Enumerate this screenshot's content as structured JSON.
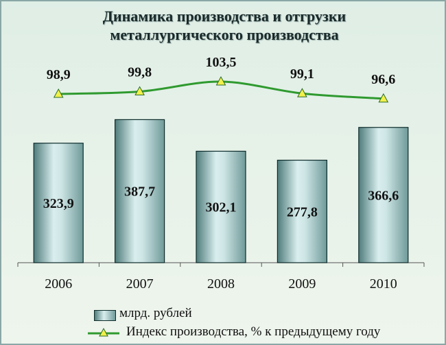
{
  "chart_data": {
    "type": "bar",
    "title": [
      "Динамика производства и отгрузки",
      "металлургического производства"
    ],
    "categories": [
      "2006",
      "2007",
      "2008",
      "2009",
      "2010"
    ],
    "series": [
      {
        "name": "млрд. рублей",
        "type": "bar",
        "values": [
          323.9,
          387.7,
          302.1,
          277.8,
          366.6
        ],
        "labels": [
          "323,9",
          "387,7",
          "302,1",
          "277,8",
          "366,6"
        ]
      },
      {
        "name": "Индекс производства, % к предыдущему году",
        "type": "line",
        "values": [
          98.9,
          99.8,
          103.5,
          99.1,
          96.6
        ],
        "labels": [
          "98,9",
          "99,8",
          "103,5",
          "99,1",
          "96,6"
        ]
      }
    ],
    "ylim": [
      0,
      450
    ],
    "grid": false,
    "legend_position": "bottom",
    "colors": {
      "bar_dark": "#4f7c7b",
      "bar_light": "#d9eeee",
      "bar_outline": "#0d2b2b",
      "line": "#2f9a2f",
      "marker_fill": "#f2f04a",
      "background": "#e4f0e7"
    }
  }
}
